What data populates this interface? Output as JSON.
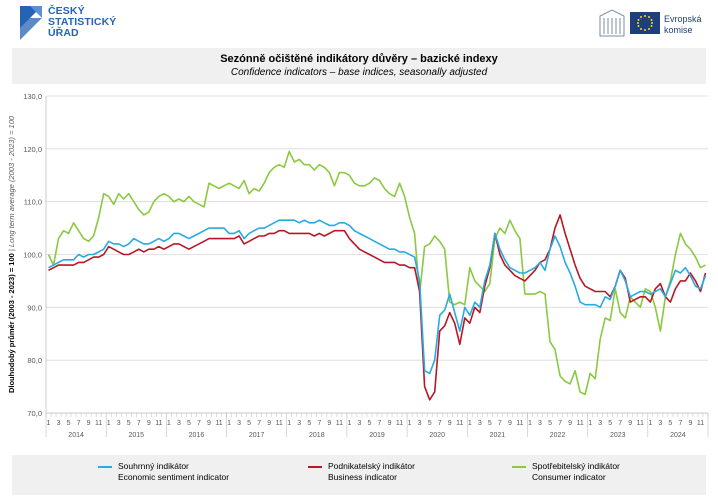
{
  "header": {
    "csu_lines": [
      "ČESKÝ",
      "STATISTICKÝ",
      "ÚŘAD"
    ],
    "ec_lines": [
      "Evropská",
      "komise"
    ],
    "colors": {
      "csu_blue": "#2563b5",
      "eu_blue": "#1f3f7a",
      "eu_star": "#ffd617"
    }
  },
  "chart_data": {
    "type": "line",
    "title": "Sezónně očištěné indikátory důvěry – bazické indexy",
    "subtitle": "Confidence indicators – base indices, seasonally adjusted",
    "ylabel": "Dlouhodobý průměr (2003 - 2023) = 100",
    "ylabel_en": "Long term average (2003 - 2023) = 100",
    "ylim": [
      70,
      130
    ],
    "yticks": [
      "70,0",
      "80,0",
      "90,0",
      "100,0",
      "110,0",
      "120,0",
      "130,0"
    ],
    "grid": true,
    "legend_position": "bottom",
    "start": "2014-01",
    "month_tick_labels": [
      "1",
      "3",
      "5",
      "7",
      "9",
      "11"
    ],
    "years": [
      "2014",
      "2015",
      "2016",
      "2017",
      "2018",
      "2019",
      "2020",
      "2021",
      "2022",
      "2023",
      "2024"
    ],
    "series": [
      {
        "name": "Souhrnný indikátor",
        "name_en": "Economic sentiment indicator",
        "color": "#29aae1",
        "values": [
          97.5,
          98,
          98.5,
          99,
          99,
          99,
          100,
          99.5,
          100,
          100,
          100.5,
          101,
          102.5,
          102,
          102,
          101.5,
          102,
          103,
          102.5,
          102,
          102,
          102.5,
          103,
          102.5,
          103,
          104,
          104,
          103.5,
          103,
          103.5,
          104,
          104.5,
          105,
          105,
          105,
          105,
          104,
          104,
          104.5,
          103,
          104,
          104.5,
          105,
          105,
          105.5,
          106,
          106.5,
          106.5,
          106.5,
          106.5,
          106,
          106.5,
          106,
          106,
          106.5,
          106,
          105.5,
          105.5,
          106,
          106,
          105.5,
          104.5,
          104,
          103.5,
          103,
          102.5,
          102,
          101.5,
          101,
          101,
          100.5,
          100.5,
          100,
          99.5,
          95,
          78,
          77.5,
          80,
          88.5,
          89.5,
          92.5,
          89,
          85.5,
          90,
          88.5,
          91,
          90,
          95,
          98,
          104,
          101,
          99,
          97.5,
          97,
          96.5,
          96.5,
          97,
          97.5,
          98.5,
          97,
          101,
          103.5,
          101.5,
          98.5,
          96.5,
          94,
          91,
          90.5,
          90.5,
          90.5,
          90,
          92,
          91.5,
          94,
          97,
          95,
          92,
          92.5,
          93,
          93,
          92.5,
          93,
          93.5,
          92,
          94.5,
          97,
          96.5,
          97.5,
          96,
          94,
          93.5,
          96
        ]
      },
      {
        "name": "Podnikatelský indikátor",
        "name_en": "Business indicator",
        "color": "#b61825",
        "values": [
          97,
          97.5,
          98,
          98,
          98,
          98,
          98.5,
          98.5,
          99,
          99.5,
          99.5,
          100,
          101.5,
          101,
          100.5,
          100,
          100,
          100.5,
          101,
          100.5,
          101,
          101,
          101.5,
          101,
          101.5,
          102,
          102,
          101.5,
          101,
          101.5,
          102,
          102.5,
          103,
          103,
          103,
          103,
          103,
          103,
          103.5,
          102,
          102.5,
          103,
          103.5,
          103.5,
          104,
          104,
          104.5,
          104.5,
          104,
          104,
          104,
          104,
          104,
          103.5,
          104,
          103.5,
          104,
          104.5,
          104.5,
          104.5,
          103,
          102,
          101,
          100.5,
          100,
          99.5,
          99,
          98.5,
          98.5,
          98.5,
          98,
          98,
          97.5,
          97.5,
          93,
          75,
          72.5,
          74,
          85.5,
          86.5,
          89,
          87,
          83,
          88,
          87,
          90,
          89,
          94,
          97.5,
          104,
          100,
          98,
          97,
          96,
          95.5,
          95,
          96,
          97,
          98.5,
          99,
          101,
          105,
          107.5,
          104,
          101,
          98,
          95.5,
          94,
          93.5,
          93,
          93,
          93,
          92,
          94,
          97,
          95.5,
          91,
          91.5,
          92,
          92,
          91,
          93.5,
          94.5,
          92,
          91,
          93.5,
          95,
          95,
          96.5,
          95,
          93,
          96.5
        ]
      },
      {
        "name": "Spotřebitelský indikátor",
        "name_en": "Consumer indicator",
        "color": "#8ac940",
        "values": [
          100,
          98,
          103,
          104.5,
          104,
          106,
          104.5,
          103,
          102.5,
          103.5,
          107,
          111.5,
          111,
          109.5,
          111.5,
          110.5,
          111.5,
          110,
          108.5,
          107.5,
          108,
          110,
          111,
          111.5,
          111,
          110,
          110.5,
          110,
          111,
          110,
          109.5,
          109,
          113.5,
          113,
          112.5,
          113,
          113.5,
          113,
          112.5,
          114,
          111.5,
          112.5,
          112,
          113.5,
          115.5,
          116.5,
          117,
          116.5,
          119.5,
          117.5,
          118,
          117,
          117,
          116,
          117,
          116.5,
          115.5,
          113,
          115.5,
          115.5,
          115,
          113.5,
          113,
          113,
          113.5,
          114.5,
          114,
          112.5,
          111.5,
          111,
          113.5,
          111,
          107,
          104,
          92.5,
          101.5,
          102,
          103.5,
          102.5,
          101,
          91,
          90.5,
          91,
          90.5,
          97.5,
          95,
          94,
          93,
          94.5,
          103,
          105,
          104,
          106.5,
          104.5,
          103,
          92.5,
          92.5,
          92.5,
          93,
          92.5,
          83.5,
          82,
          77,
          76,
          75.5,
          78,
          74,
          73.5,
          77.5,
          76.5,
          84,
          88,
          87.5,
          93.5,
          89,
          88,
          92,
          91,
          90,
          93.5,
          93,
          90,
          85.5,
          92,
          95,
          100,
          104,
          102,
          101,
          99.5,
          97.5,
          98
        ]
      }
    ]
  }
}
